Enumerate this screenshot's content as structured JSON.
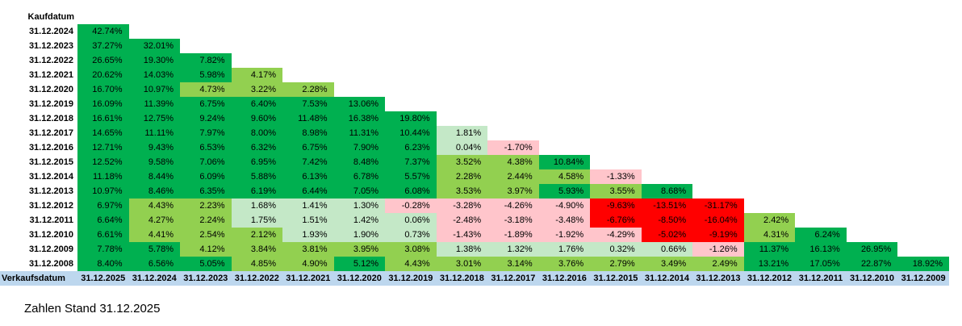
{
  "labels": {
    "row_axis": "Kaufdatum",
    "col_axis": "Verkaufsdatum",
    "footnote": "Zahlen Stand 31.12.2025"
  },
  "colors": {
    "header_bg": "#BDD7EE",
    "text": "#000000",
    "scale": [
      {
        "name": "deep-negative",
        "upper_bound": -5,
        "color": "#FF0000"
      },
      {
        "name": "negative",
        "upper_bound": 0,
        "color": "#FFC5CB"
      },
      {
        "name": "low-positive",
        "upper_bound": 2,
        "color": "#C4E8C7"
      },
      {
        "name": "mid-positive",
        "upper_bound": 5,
        "color": "#92D050"
      },
      {
        "name": "high-positive",
        "upper_bound": null,
        "color": "#00B050"
      }
    ]
  },
  "chart_data": {
    "type": "heatmap",
    "title": "Renditedreieck (Kaufdatum x Verkaufsdatum)",
    "unit": "%",
    "value_format": "0.00%",
    "legend_position": "none",
    "grid": false,
    "columns": [
      "31.12.2025",
      "31.12.2024",
      "31.12.2023",
      "31.12.2022",
      "31.12.2021",
      "31.12.2020",
      "31.12.2019",
      "31.12.2018",
      "31.12.2017",
      "31.12.2016",
      "31.12.2015",
      "31.12.2014",
      "31.12.2013",
      "31.12.2012",
      "31.12.2011",
      "31.12.2010",
      "31.12.2009"
    ],
    "rows": [
      {
        "label": "31.12.2024",
        "values": [
          42.74
        ]
      },
      {
        "label": "31.12.2023",
        "values": [
          37.27,
          32.01
        ]
      },
      {
        "label": "31.12.2022",
        "values": [
          26.65,
          19.3,
          7.82
        ]
      },
      {
        "label": "31.12.2021",
        "values": [
          20.62,
          14.03,
          5.98,
          4.17
        ]
      },
      {
        "label": "31.12.2020",
        "values": [
          16.7,
          10.97,
          4.73,
          3.22,
          2.28
        ]
      },
      {
        "label": "31.12.2019",
        "values": [
          16.09,
          11.39,
          6.75,
          6.4,
          7.53,
          13.06
        ]
      },
      {
        "label": "31.12.2018",
        "values": [
          16.61,
          12.75,
          9.24,
          9.6,
          11.48,
          16.38,
          19.8
        ]
      },
      {
        "label": "31.12.2017",
        "values": [
          14.65,
          11.11,
          7.97,
          8.0,
          8.98,
          11.31,
          10.44,
          1.81
        ]
      },
      {
        "label": "31.12.2016",
        "values": [
          12.71,
          9.43,
          6.53,
          6.32,
          6.75,
          7.9,
          6.23,
          0.04,
          -1.7
        ]
      },
      {
        "label": "31.12.2015",
        "values": [
          12.52,
          9.58,
          7.06,
          6.95,
          7.42,
          8.48,
          7.37,
          3.52,
          4.38,
          10.84
        ]
      },
      {
        "label": "31.12.2014",
        "values": [
          11.18,
          8.44,
          6.09,
          5.88,
          6.13,
          6.78,
          5.57,
          2.28,
          2.44,
          4.58,
          -1.33
        ]
      },
      {
        "label": "31.12.2013",
        "values": [
          10.97,
          8.46,
          6.35,
          6.19,
          6.44,
          7.05,
          6.08,
          3.53,
          3.97,
          5.93,
          3.55,
          8.68
        ]
      },
      {
        "label": "31.12.2012",
        "values": [
          6.97,
          4.43,
          2.23,
          1.68,
          1.41,
          1.3,
          -0.28,
          -3.28,
          -4.26,
          -4.9,
          -9.63,
          -13.51,
          -31.17
        ]
      },
      {
        "label": "31.12.2011",
        "values": [
          6.64,
          4.27,
          2.24,
          1.75,
          1.51,
          1.42,
          0.06,
          -2.48,
          -3.18,
          -3.48,
          -6.76,
          -8.5,
          -16.04,
          2.42
        ]
      },
      {
        "label": "31.12.2010",
        "values": [
          6.61,
          4.41,
          2.54,
          2.12,
          1.93,
          1.9,
          0.73,
          -1.43,
          -1.89,
          -1.92,
          -4.29,
          -5.02,
          -9.19,
          4.31,
          6.24
        ]
      },
      {
        "label": "31.12.2009",
        "values": [
          7.78,
          5.78,
          4.12,
          3.84,
          3.81,
          3.95,
          3.08,
          1.38,
          1.32,
          1.76,
          0.32,
          0.66,
          -1.26,
          11.37,
          16.13,
          26.95
        ]
      },
      {
        "label": "31.12.2008",
        "values": [
          8.4,
          6.56,
          5.05,
          4.85,
          4.9,
          5.12,
          4.43,
          3.01,
          3.14,
          3.76,
          2.79,
          3.49,
          2.49,
          13.21,
          17.05,
          22.87,
          18.92
        ]
      }
    ]
  }
}
